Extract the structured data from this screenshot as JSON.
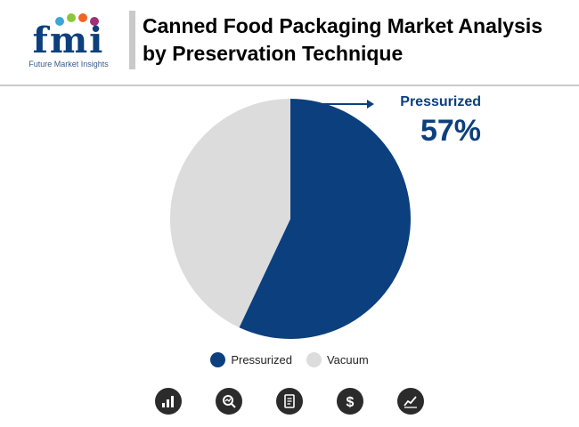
{
  "brand": {
    "logo_text": "fmi",
    "logo_subtitle": "Future Market Insights",
    "logo_color": "#0c3f7d",
    "dot_colors": [
      "#3aa7d6",
      "#8cc63f",
      "#f26522",
      "#a0307a"
    ]
  },
  "header": {
    "title": "Canned Food Packaging Market Analysis by Preservation Technique"
  },
  "callout": {
    "label": "Pressurized",
    "value": "57%"
  },
  "chart_data": {
    "type": "pie",
    "title": "Canned Food Packaging Market Analysis by Preservation Technique",
    "slices": [
      {
        "label": "Pressurized",
        "value": 57,
        "color": "#0c3f7d"
      },
      {
        "label": "Vacuum",
        "value": 43,
        "color": "#dcdcdc"
      }
    ],
    "legend_position": "bottom"
  },
  "legend": [
    {
      "label": "Pressurized",
      "color": "#0c3f7d"
    },
    {
      "label": "Vacuum",
      "color": "#dcdcdc"
    }
  ],
  "footer_icons": [
    "bar-chart-icon",
    "magnifier-trend-icon",
    "report-document-icon",
    "dollar-icon",
    "line-chart-icon"
  ]
}
